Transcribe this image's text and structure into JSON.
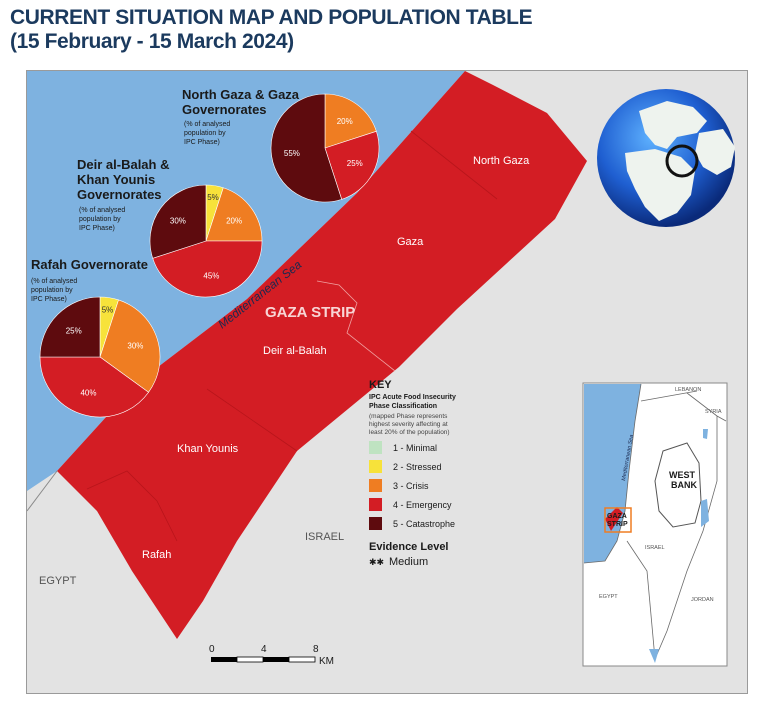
{
  "title": {
    "line1": "CURRENT SITUATION MAP AND POPULATION TABLE",
    "line2": "(15 February - 15 March 2024)"
  },
  "colors": {
    "sea": "#7eb2e0",
    "land": "#e3e3e3",
    "phase1": "#bfe3c1",
    "phase2": "#f7e23a",
    "phase3": "#ef7d22",
    "phase4": "#d31d24",
    "phase5": "#5e0b0e"
  },
  "map_labels": {
    "north_gaza": "North Gaza",
    "gaza": "Gaza",
    "gaza_strip": "GAZA STRIP",
    "deir_al_balah": "Deir al-Balah",
    "khan_younis": "Khan Younis",
    "rafah": "Rafah",
    "israel": "ISRAEL",
    "egypt": "EGYPT",
    "sea": "Mediterranean Sea"
  },
  "pies": [
    {
      "title_lines": [
        "North Gaza & Gaza",
        "Governorates"
      ],
      "sub_lines": [
        "(% of analysed",
        "population by",
        "IPC Phase)"
      ],
      "slices": [
        {
          "phase": 3,
          "value": 20,
          "label": "20%"
        },
        {
          "phase": 4,
          "value": 25,
          "label": "25%"
        },
        {
          "phase": 5,
          "value": 55,
          "label": "55%"
        }
      ]
    },
    {
      "title_lines": [
        "Deir al-Balah &",
        "Khan Younis",
        "Governorates"
      ],
      "sub_lines": [
        "(% of analysed",
        "population by",
        "IPC Phase)"
      ],
      "slices": [
        {
          "phase": 2,
          "value": 5,
          "label": "5%"
        },
        {
          "phase": 3,
          "value": 20,
          "label": "20%"
        },
        {
          "phase": 4,
          "value": 45,
          "label": "45%"
        },
        {
          "phase": 5,
          "value": 30,
          "label": "30%"
        }
      ]
    },
    {
      "title_lines": [
        "Rafah  Governorate"
      ],
      "sub_lines": [
        "(% of analysed",
        "population by",
        "IPC Phase)"
      ],
      "slices": [
        {
          "phase": 2,
          "value": 5,
          "label": "5%"
        },
        {
          "phase": 3,
          "value": 30,
          "label": "30%"
        },
        {
          "phase": 4,
          "value": 40,
          "label": "40%"
        },
        {
          "phase": 5,
          "value": 25,
          "label": "25%"
        }
      ]
    }
  ],
  "key": {
    "title": "KEY",
    "subtitle_lines": [
      "IPC Acute Food Insecurity",
      "Phase Classification"
    ],
    "note_lines": [
      "(mapped Phase represents",
      "highest severity affecting at",
      "least 20% of the population)"
    ],
    "items": [
      {
        "phase": 1,
        "label": "1 - Minimal"
      },
      {
        "phase": 2,
        "label": "2 - Stressed"
      },
      {
        "phase": 3,
        "label": "3 - Crisis"
      },
      {
        "phase": 4,
        "label": "4 - Emergency"
      },
      {
        "phase": 5,
        "label": "5 - Catastrophe"
      }
    ],
    "evidence_title": "Evidence Level",
    "evidence_value": "Medium",
    "evidence_marker": "✱✱"
  },
  "scale": {
    "ticks": [
      "0",
      "4",
      "8"
    ],
    "unit": "KM"
  },
  "inset": {
    "lebanon": "LEBANON",
    "syria": "SYRIA",
    "west_bank_lines": [
      "WEST",
      "BANK"
    ],
    "gaza_strip_lines": [
      "GAZA",
      "STRIP"
    ],
    "israel": "ISRAEL",
    "egypt": "EGYPT",
    "jordan": "JORDAN",
    "sea": "Mediterranean Sea"
  }
}
